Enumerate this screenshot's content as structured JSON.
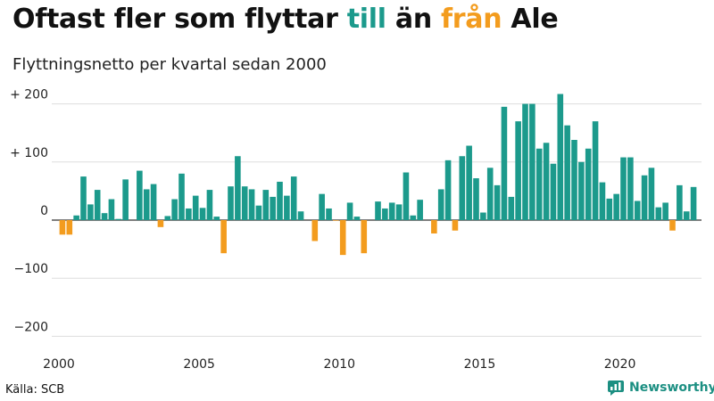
{
  "header": {
    "title_part1": "Oftast fler som flyttar ",
    "title_pos": "till",
    "title_part2": " än ",
    "title_neg": "från",
    "title_part3": " Ale",
    "subtitle": "Flyttningsnetto per kvartal sedan 2000"
  },
  "footer": {
    "source": "Källa: SCB",
    "brand": "Newsworthy"
  },
  "colors": {
    "positive": "#1c9a8c",
    "negative": "#f39c1e",
    "grid": "#dddddd",
    "axis": "#333333"
  },
  "chart_data": {
    "type": "bar",
    "title": "Oftast fler som flyttar till än från Ale",
    "subtitle": "Flyttningsnetto per kvartal sedan 2000",
    "xlabel": "",
    "ylabel": "",
    "ylim": [
      -230,
      230
    ],
    "yticks": [
      200,
      100,
      0,
      -100,
      -200
    ],
    "ytick_labels": [
      "+ 200",
      "+ 100",
      "0",
      "−100",
      "−200"
    ],
    "xticks": [
      2000,
      2005,
      2010,
      2015,
      2020
    ],
    "xtick_labels": [
      "2000",
      "2005",
      "2010",
      "2015",
      "2020"
    ],
    "start_year": 2000,
    "series": [
      {
        "name": "Flyttningsnetto",
        "values": [
          -25,
          -25,
          8,
          75,
          27,
          52,
          12,
          36,
          2,
          70,
          0,
          85,
          53,
          62,
          -12,
          7,
          36,
          80,
          20,
          42,
          21,
          52,
          6,
          -57,
          58,
          110,
          58,
          53,
          25,
          52,
          40,
          66,
          42,
          75,
          15,
          0,
          -36,
          45,
          20,
          -1,
          -60,
          30,
          6,
          -57,
          0,
          32,
          20,
          30,
          27,
          82,
          8,
          35,
          0,
          -23,
          53,
          103,
          -18,
          110,
          128,
          72,
          13,
          90,
          60,
          195,
          40,
          170,
          200,
          200,
          123,
          133,
          97,
          217,
          163,
          138,
          100,
          123,
          170,
          65,
          37,
          45,
          108,
          108,
          33,
          77,
          90,
          22,
          30,
          -18,
          60,
          15,
          57
        ]
      }
    ]
  }
}
